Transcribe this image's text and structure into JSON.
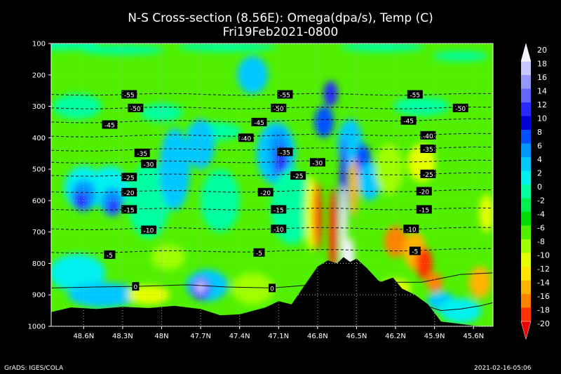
{
  "chart_data": {
    "type": "heatmap",
    "title": "N-S Cross-section (8.56E): Omega(dpa/s), Temp (C)",
    "subtitle": "Fri19Feb2021-0800",
    "y_ticks": [
      "100",
      "200",
      "300",
      "400",
      "500",
      "600",
      "700",
      "800",
      "900",
      "1000"
    ],
    "y_range": [
      100,
      1000
    ],
    "x_ticks": [
      "48.6N",
      "48.3N",
      "48N",
      "47.7N",
      "47.4N",
      "47.1N",
      "46.8N",
      "46.5N",
      "46.2N",
      "45.9N",
      "45.6N"
    ],
    "x_range": [
      48.85,
      45.45
    ],
    "colorbar": {
      "labels": [
        "20",
        "18",
        "16",
        "14",
        "12",
        "10",
        "8",
        "6",
        "4",
        "2",
        "0",
        "-2",
        "-4",
        "-6",
        "-8",
        "-10",
        "-12",
        "-14",
        "-16",
        "-18",
        "-20"
      ],
      "colors": [
        "#f2f2ff",
        "#c8c8ff",
        "#9696ff",
        "#6464ff",
        "#2828ff",
        "#0000d2",
        "#0050ff",
        "#0096ff",
        "#00c8ff",
        "#00f0f0",
        "#00ffa0",
        "#00f050",
        "#00dc00",
        "#50f000",
        "#a0ff00",
        "#e6ff00",
        "#ffe600",
        "#ffb400",
        "#ff8200",
        "#ff3200",
        "#f00000"
      ]
    },
    "temperature_labels": [
      {
        "text": "-55",
        "x": 48.25,
        "p": 262
      },
      {
        "text": "-55",
        "x": 47.05,
        "p": 262
      },
      {
        "text": "-55",
        "x": 46.05,
        "p": 262
      },
      {
        "text": "-50",
        "x": 48.2,
        "p": 305
      },
      {
        "text": "-50",
        "x": 47.1,
        "p": 305
      },
      {
        "text": "-50",
        "x": 45.7,
        "p": 305
      },
      {
        "text": "-45",
        "x": 48.4,
        "p": 358
      },
      {
        "text": "-45",
        "x": 47.25,
        "p": 350
      },
      {
        "text": "-45",
        "x": 46.1,
        "p": 345
      },
      {
        "text": "-40",
        "x": 47.35,
        "p": 400
      },
      {
        "text": "-40",
        "x": 45.95,
        "p": 392
      },
      {
        "text": "-35",
        "x": 48.15,
        "p": 448
      },
      {
        "text": "-35",
        "x": 47.05,
        "p": 445
      },
      {
        "text": "-35",
        "x": 45.95,
        "p": 435
      },
      {
        "text": "-30",
        "x": 48.1,
        "p": 483
      },
      {
        "text": "-30",
        "x": 46.8,
        "p": 478
      },
      {
        "text": "-25",
        "x": 48.25,
        "p": 525
      },
      {
        "text": "-25",
        "x": 46.95,
        "p": 520
      },
      {
        "text": "-25",
        "x": 45.95,
        "p": 515
      },
      {
        "text": "-20",
        "x": 48.25,
        "p": 573
      },
      {
        "text": "-20",
        "x": 47.2,
        "p": 573
      },
      {
        "text": "-20",
        "x": 45.98,
        "p": 570
      },
      {
        "text": "-15",
        "x": 48.25,
        "p": 628
      },
      {
        "text": "-15",
        "x": 47.1,
        "p": 628
      },
      {
        "text": "-15",
        "x": 45.98,
        "p": 628
      },
      {
        "text": "-10",
        "x": 48.1,
        "p": 693
      },
      {
        "text": "-10",
        "x": 47.1,
        "p": 690
      },
      {
        "text": "-10",
        "x": 46.08,
        "p": 690
      },
      {
        "text": "-5",
        "x": 48.4,
        "p": 772
      },
      {
        "text": "-5",
        "x": 47.25,
        "p": 765
      },
      {
        "text": "-5",
        "x": 46.05,
        "p": 760
      },
      {
        "text": "0",
        "x": 48.2,
        "p": 873
      },
      {
        "text": "0",
        "x": 47.15,
        "p": 878
      }
    ]
  },
  "footer": {
    "left": "GrADS: IGES/COLA",
    "right": "2021-02-16-05:06"
  }
}
